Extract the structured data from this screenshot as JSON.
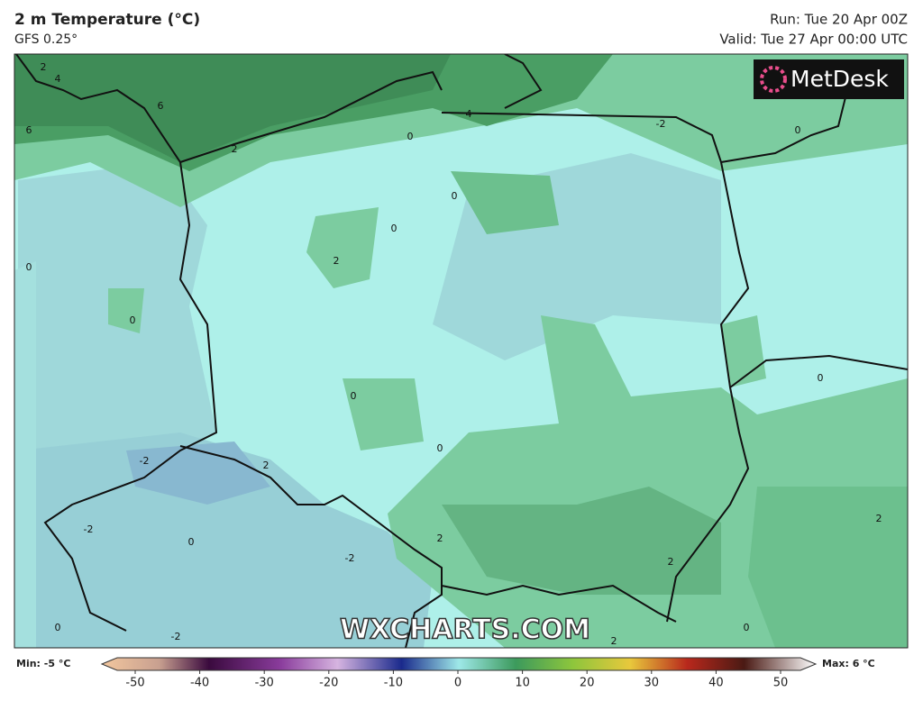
{
  "header": {
    "title": "2 m Temperature (°C)",
    "model": "GFS 0.25°",
    "run": "Run: Tue 20 Apr 00Z",
    "valid": "Valid: Tue 27 Apr 00:00 UTC"
  },
  "logo": "MetDesk",
  "watermark": "WXCHARTS.COM",
  "map": {
    "contour_labels": [
      4,
      2,
      6,
      6,
      2,
      0,
      4,
      -2,
      0,
      0,
      0,
      2,
      0,
      0,
      0,
      0,
      0,
      -2,
      2,
      -2,
      0,
      2,
      -2,
      2,
      2,
      0,
      -2,
      0,
      2
    ]
  },
  "colorbar": {
    "min_label": "Min: -5 °C",
    "max_label": "Max: 6 °C",
    "ticks": [
      -50,
      -40,
      -30,
      -20,
      -10,
      0,
      10,
      20,
      30,
      40,
      50
    ]
  }
}
